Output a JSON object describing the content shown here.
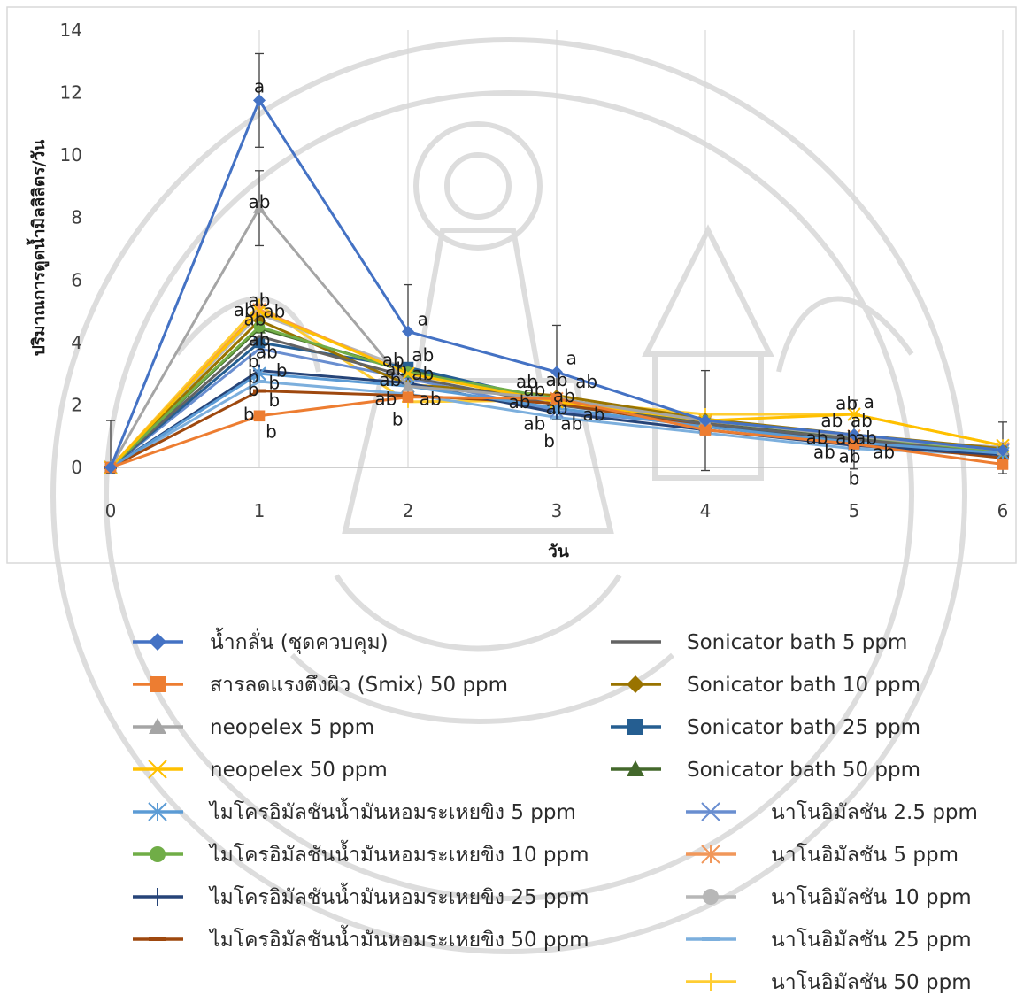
{
  "chart_data": {
    "type": "line",
    "title": "",
    "xlabel": "วัน",
    "ylabel": "ปริมาณการดูดน้ำมิลลิลิตร/วัน",
    "x": [
      0,
      1,
      2,
      3,
      4,
      5,
      6
    ],
    "x_tick_labels": [
      "0",
      "1",
      "2",
      "3",
      "4",
      "5",
      "6"
    ],
    "y_tick_labels": [
      "0",
      "2",
      "4",
      "6",
      "8",
      "10",
      "12",
      "14"
    ],
    "ylim": [
      0,
      14
    ],
    "xlim": [
      0,
      6
    ],
    "grid": "vertical",
    "legend_position": "bottom",
    "series": [
      {
        "name": "น้ำกลั่น (ชุดควบคุม)",
        "color": "#4472c4",
        "marker": "diamond",
        "values": [
          0,
          11.75,
          4.35,
          3.05,
          1.5,
          1.05,
          0.55
        ],
        "errors": [
          1.5,
          1.5,
          1.5,
          1.5,
          1.6,
          1.1,
          0.9
        ]
      },
      {
        "name": "สารลดแรงตึงผิว (Smix) 50 ppm",
        "color": "#ed7d31",
        "marker": "square",
        "values": [
          0,
          1.65,
          2.25,
          2.2,
          1.2,
          0.75,
          0.1
        ],
        "errors": [
          0,
          0,
          0,
          0,
          0,
          0,
          0
        ]
      },
      {
        "name": "neopelex 5 ppm",
        "color": "#a5a5a5",
        "marker": "triangle",
        "values": [
          0,
          8.3,
          2.6,
          2.2,
          1.5,
          1.0,
          0.55
        ],
        "errors": [
          0,
          1.2,
          0,
          0,
          0,
          0,
          0
        ]
      },
      {
        "name": "neopelex 50 ppm",
        "color": "#ffc000",
        "marker": "x",
        "values": [
          0,
          5.0,
          3.0,
          2.1,
          1.5,
          1.7,
          0.7
        ],
        "errors": [
          0,
          0,
          0,
          0,
          0,
          0,
          0
        ]
      },
      {
        "name": "ไมโครอิมัลชันน้ำมันหอมระเหยขิง 5 ppm",
        "color": "#5b9bd5",
        "marker": "asterisk",
        "values": [
          0,
          3.0,
          2.6,
          1.9,
          1.3,
          0.8,
          0.45
        ],
        "errors": [
          0,
          0,
          0,
          0,
          0,
          0,
          0
        ]
      },
      {
        "name": "ไมโครอิมัลชันน้ำมันหอมระเหยขิง 10 ppm",
        "color": "#70ad47",
        "marker": "circle",
        "values": [
          0,
          4.5,
          3.05,
          2.2,
          1.5,
          1.0,
          0.5
        ],
        "errors": [
          0,
          0,
          0,
          0,
          0,
          0,
          0
        ]
      },
      {
        "name": "ไมโครอิมัลชันน้ำมันหอมระเหยขิง 25 ppm",
        "color": "#264478",
        "marker": "plus",
        "values": [
          0,
          3.1,
          2.7,
          1.75,
          1.2,
          0.7,
          0.4
        ],
        "errors": [
          0,
          0,
          0,
          0,
          0,
          0,
          0
        ]
      },
      {
        "name": "ไมโครอิมัลชันน้ำมันหอมระเหยขิง 50 ppm",
        "color": "#9e480e",
        "marker": "dash",
        "values": [
          0,
          2.45,
          2.3,
          2.05,
          1.3,
          0.8,
          0.3
        ],
        "errors": [
          0,
          0,
          0,
          0,
          0,
          0,
          0
        ]
      },
      {
        "name": "Sonicator bath 5 ppm",
        "color": "#636363",
        "marker": "none",
        "values": [
          0,
          4.2,
          2.9,
          2.0,
          1.4,
          0.9,
          0.5
        ],
        "errors": [
          0,
          0,
          0,
          0,
          0,
          0,
          0
        ]
      },
      {
        "name": "Sonicator bath  10 ppm",
        "color": "#997300",
        "marker": "diamond",
        "values": [
          0,
          4.7,
          2.65,
          2.3,
          1.55,
          1.05,
          0.6
        ],
        "errors": [
          0,
          0,
          0,
          0,
          0,
          0,
          0
        ]
      },
      {
        "name": "Sonicator bath 25 ppm",
        "color": "#255e91",
        "marker": "square",
        "values": [
          0,
          4.0,
          3.2,
          2.1,
          1.3,
          0.9,
          0.45
        ],
        "errors": [
          0,
          0,
          0,
          0,
          0,
          0,
          0
        ]
      },
      {
        "name": "Sonicator bath 50 ppm",
        "color": "#43682b",
        "marker": "triangle",
        "values": [
          0,
          4.45,
          3.1,
          2.15,
          1.4,
          0.95,
          0.5
        ],
        "errors": [
          0,
          0,
          0,
          0,
          0,
          0,
          0
        ]
      },
      {
        "name": "นาโนอิมัลชัน 2.5 ppm",
        "color": "#698ed0",
        "marker": "x",
        "values": [
          0,
          3.8,
          2.85,
          1.8,
          1.35,
          0.85,
          0.55
        ],
        "errors": [
          0,
          0,
          0,
          0,
          0,
          0,
          0
        ]
      },
      {
        "name": "นาโนอิมัลชัน 5 ppm",
        "color": "#f1975a",
        "marker": "asterisk",
        "values": [
          0,
          5.05,
          3.0,
          2.2,
          1.45,
          1.0,
          0.6
        ],
        "errors": [
          0,
          0,
          0,
          0,
          0,
          0,
          0
        ]
      },
      {
        "name": "นาโนอิมัลชัน 10 ppm",
        "color": "#b7b7b7",
        "marker": "circle",
        "values": [
          0,
          4.9,
          3.15,
          2.05,
          1.45,
          0.95,
          0.65
        ],
        "errors": [
          0,
          0,
          0,
          0,
          0,
          0,
          0
        ]
      },
      {
        "name": "นาโนอิมัลชัน 25 ppm",
        "color": "#7cafdd",
        "marker": "dash",
        "values": [
          0,
          2.75,
          2.35,
          1.6,
          1.1,
          0.6,
          0.4
        ],
        "errors": [
          0,
          0,
          0,
          0,
          0,
          0,
          0
        ]
      },
      {
        "name": "นาโนอิมัลชัน 50 ppm",
        "color": "#ffcd33",
        "marker": "plus",
        "values": [
          0,
          5.2,
          2.1,
          2.15,
          1.7,
          1.7,
          0.7
        ],
        "errors": [
          0,
          0,
          0,
          0,
          0,
          0,
          0
        ]
      }
    ],
    "annotations": [
      {
        "text": "a",
        "x": 1,
        "y": 12.2
      },
      {
        "text": "ab",
        "x": 1,
        "y": 8.5
      },
      {
        "text": "ab",
        "x": 1,
        "y": 5.35
      },
      {
        "text": "ab",
        "x": 0.9,
        "y": 5.05
      },
      {
        "text": "ab",
        "x": 1.1,
        "y": 5.0
      },
      {
        "text": "ab",
        "x": 0.97,
        "y": 4.75
      },
      {
        "text": "ab",
        "x": 1,
        "y": 4.1
      },
      {
        "text": "ab",
        "x": 1.05,
        "y": 3.7
      },
      {
        "text": "b",
        "x": 0.96,
        "y": 3.4
      },
      {
        "text": "b",
        "x": 1.15,
        "y": 3.1
      },
      {
        "text": "b",
        "x": 0.96,
        "y": 2.9
      },
      {
        "text": "b",
        "x": 1.1,
        "y": 2.7
      },
      {
        "text": "b",
        "x": 0.96,
        "y": 2.5
      },
      {
        "text": "b",
        "x": 1.1,
        "y": 2.15
      },
      {
        "text": "b",
        "x": 0.93,
        "y": 1.7
      },
      {
        "text": "b",
        "x": 1.08,
        "y": 1.15
      },
      {
        "text": "a",
        "x": 2.1,
        "y": 4.75
      },
      {
        "text": "ab",
        "x": 1.9,
        "y": 3.45
      },
      {
        "text": "ab",
        "x": 2.1,
        "y": 3.6
      },
      {
        "text": "ab",
        "x": 1.92,
        "y": 3.15
      },
      {
        "text": "ab",
        "x": 2.1,
        "y": 3.0
      },
      {
        "text": "ab",
        "x": 1.88,
        "y": 2.8
      },
      {
        "text": "ab",
        "x": 1.85,
        "y": 2.2
      },
      {
        "text": "ab",
        "x": 2.15,
        "y": 2.2
      },
      {
        "text": "b",
        "x": 1.93,
        "y": 1.55
      },
      {
        "text": "a",
        "x": 3.1,
        "y": 3.5
      },
      {
        "text": "ab",
        "x": 2.8,
        "y": 2.75
      },
      {
        "text": "ab",
        "x": 3.0,
        "y": 2.8
      },
      {
        "text": "ab",
        "x": 3.2,
        "y": 2.75
      },
      {
        "text": "ab",
        "x": 2.85,
        "y": 2.5
      },
      {
        "text": "ab",
        "x": 3.05,
        "y": 2.3
      },
      {
        "text": "ab",
        "x": 2.75,
        "y": 2.1
      },
      {
        "text": "ab",
        "x": 3.0,
        "y": 1.9
      },
      {
        "text": "ab",
        "x": 3.25,
        "y": 1.7
      },
      {
        "text": "ab",
        "x": 2.85,
        "y": 1.4
      },
      {
        "text": "ab",
        "x": 3.1,
        "y": 1.4
      },
      {
        "text": "b",
        "x": 2.95,
        "y": 0.85
      },
      {
        "text": "a",
        "x": 5.1,
        "y": 2.1
      },
      {
        "text": "ab",
        "x": 4.95,
        "y": 2.05
      },
      {
        "text": "ab",
        "x": 4.85,
        "y": 1.5
      },
      {
        "text": "ab",
        "x": 5.05,
        "y": 1.5
      },
      {
        "text": "ab",
        "x": 4.75,
        "y": 0.95
      },
      {
        "text": "ab",
        "x": 4.95,
        "y": 0.95
      },
      {
        "text": "ab",
        "x": 5.08,
        "y": 0.95
      },
      {
        "text": "ab",
        "x": 4.8,
        "y": 0.5
      },
      {
        "text": "ab",
        "x": 4.97,
        "y": 0.35
      },
      {
        "text": "ab",
        "x": 5.2,
        "y": 0.5
      },
      {
        "text": "b",
        "x": 5.0,
        "y": -0.35
      }
    ]
  }
}
